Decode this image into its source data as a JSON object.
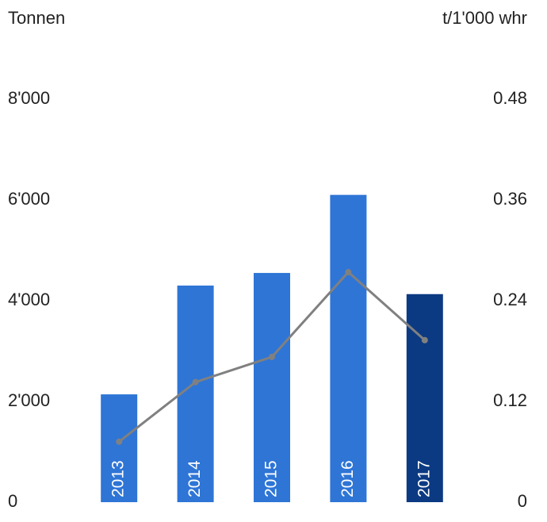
{
  "chart_data": {
    "type": "bar",
    "y_label": "Tonnen",
    "y2_label": "t/1'000 whr",
    "categories": [
      "2013",
      "2014",
      "2015",
      "2016",
      "2017"
    ],
    "series": [
      {
        "type": "bar",
        "colors": [
          "#2e75d6",
          "#2e75d6",
          "#2e75d6",
          "#2e75d6",
          "#0b3a82"
        ],
        "values": [
          2140,
          4300,
          4550,
          6100,
          4130
        ]
      },
      {
        "type": "line",
        "axis": "y2",
        "color": "#808080",
        "values": [
          0.072,
          0.143,
          0.173,
          0.274,
          0.193
        ]
      }
    ],
    "ylim": [
      0,
      8000
    ],
    "yticks": [
      0,
      {
        "value": 2000,
        "label": "2'000"
      },
      {
        "value": 4000,
        "label": "4'000"
      },
      {
        "value": 6000,
        "label": "6'000"
      },
      {
        "value": 8000,
        "label": "8'000"
      }
    ],
    "y2lim": [
      0,
      0.48
    ],
    "y2ticks": [
      0,
      0.12,
      0.24,
      0.36,
      0.48
    ],
    "grid": false
  }
}
